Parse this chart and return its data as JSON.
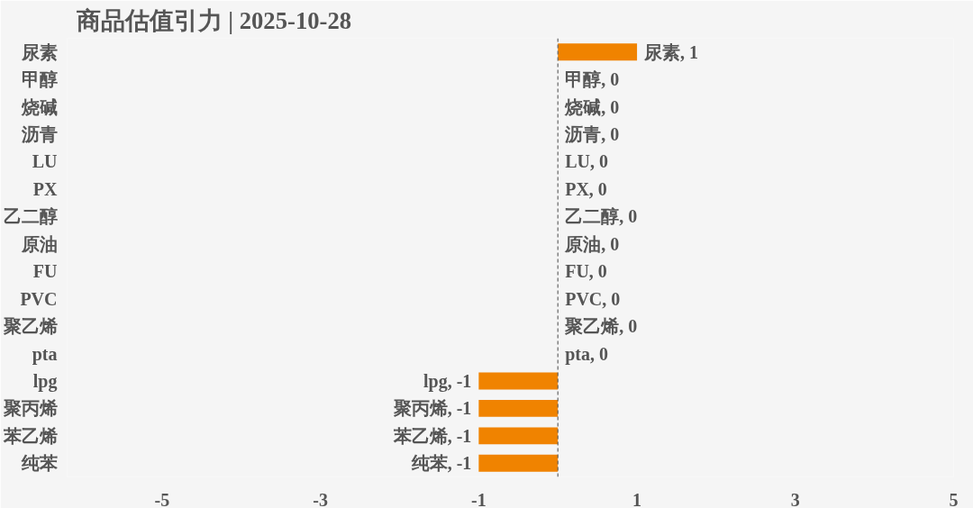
{
  "chart_data": {
    "type": "bar",
    "orientation": "horizontal",
    "title": "商品估值引力 | 2025-10-28",
    "categories": [
      "尿素",
      "甲醇",
      "烧碱",
      "沥青",
      "LU",
      "PX",
      "乙二醇",
      "原油",
      "FU",
      "PVC",
      "聚乙烯",
      "pta",
      "lpg",
      "聚丙烯",
      "苯乙烯",
      "纯苯"
    ],
    "values": [
      1,
      0,
      0,
      0,
      0,
      0,
      0,
      0,
      0,
      0,
      0,
      0,
      -1,
      -1,
      -1,
      -1
    ],
    "color": "#f08300",
    "value_labels": [
      "尿素, 1",
      "甲醇, 0",
      "烧碱, 0",
      "沥青, 0",
      "LU, 0",
      "PX, 0",
      "乙二醇, 0",
      "原油, 0",
      "FU, 0",
      "PVC, 0",
      "聚乙烯, 0",
      "pta, 0",
      "lpg, -1",
      "聚丙烯, -1",
      "苯乙烯, -1",
      "纯苯, -1"
    ],
    "xlim": [
      -6.2,
      5
    ],
    "xticks": [
      -5,
      -3,
      -1,
      1,
      3,
      5
    ],
    "ref_lines": [
      {
        "axis": "x",
        "value": 0,
        "color": "#666666",
        "line_style": "dashed"
      }
    ],
    "grid": false
  }
}
